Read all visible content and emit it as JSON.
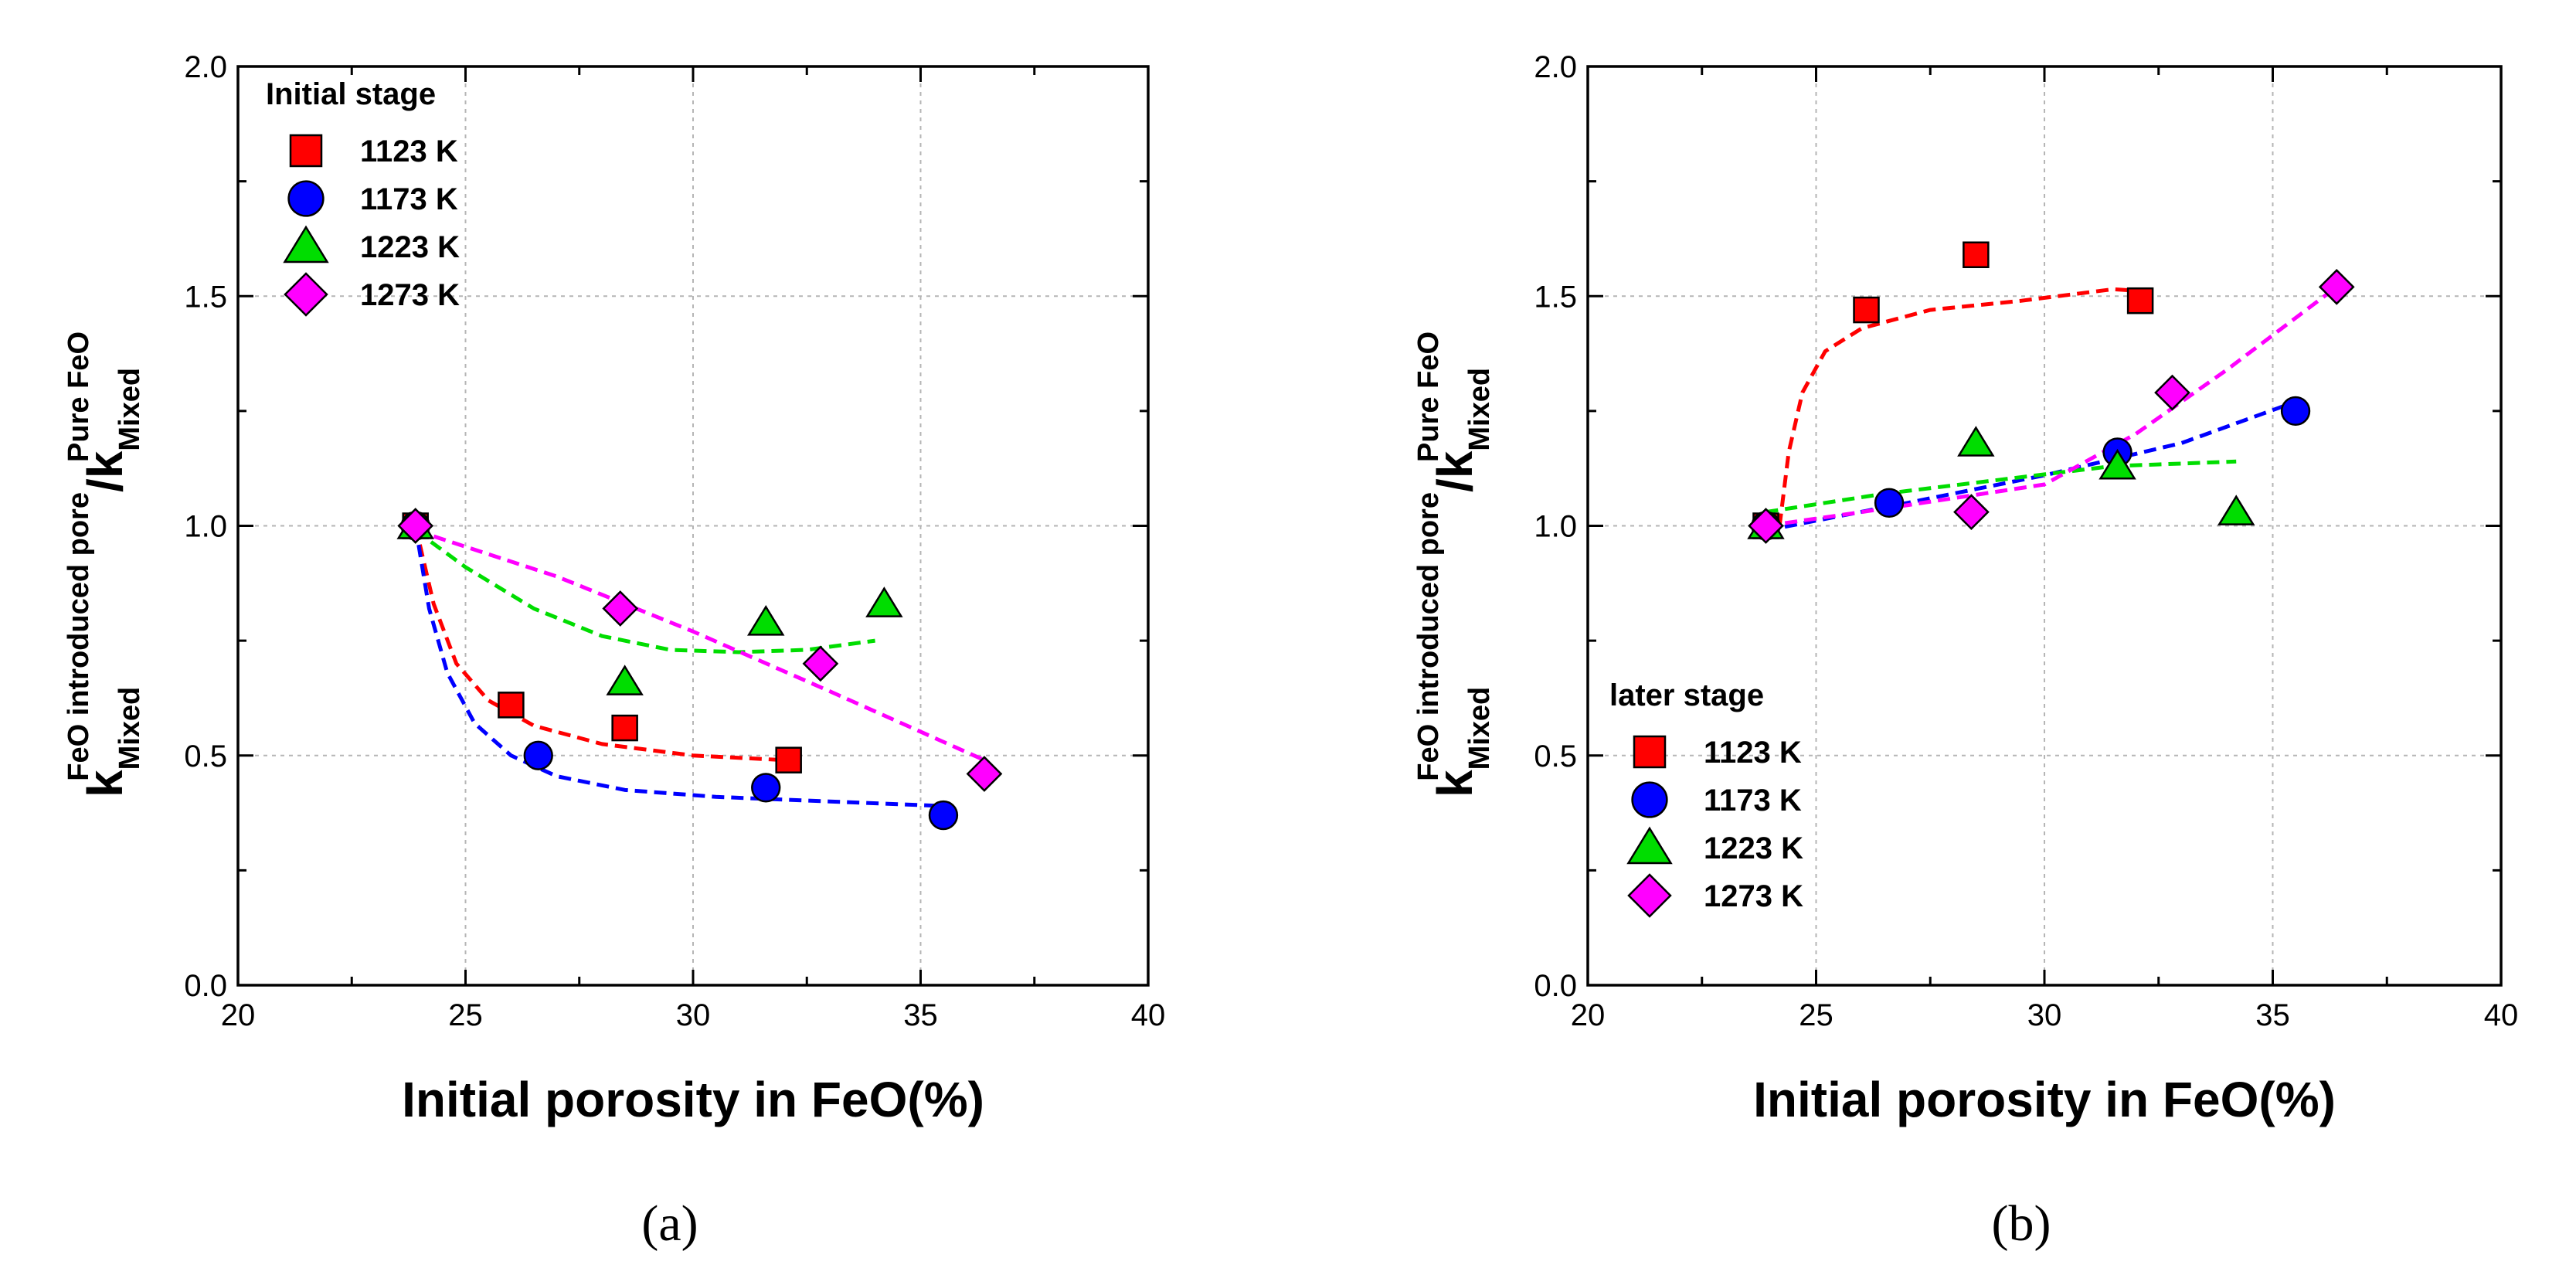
{
  "colors": {
    "1123 K": "#ff0000",
    "1173 K": "#0000ff",
    "1223 K": "#00dd00",
    "1273 K": "#ff00ff"
  },
  "chart_data": [
    {
      "type": "scatter",
      "panel_label": "(a)",
      "xlabel": "Initial porosity in FeO(%)",
      "ylabel_parts": {
        "k": "k",
        "sub1": "Mixed",
        "sup1": "FeO introduced pore",
        "slash": "/k",
        "sub2": "Mixed",
        "sup2": "Pure FeO"
      },
      "xlim": [
        20,
        40
      ],
      "ylim": [
        0.0,
        2.0
      ],
      "xticks": [
        20,
        25,
        30,
        35,
        40
      ],
      "yticks": [
        0.0,
        0.5,
        1.0,
        1.5,
        2.0
      ],
      "ytick_labels": [
        "0.0",
        "0.5",
        "1.0",
        "1.5",
        "2.0"
      ],
      "grid": true,
      "legend_title": "Initial stage",
      "legend_position": "top-left",
      "series": [
        {
          "name": "1123 K",
          "marker": "square",
          "x": [
            23.9,
            26.0,
            28.5,
            32.1
          ],
          "y": [
            1.0,
            0.61,
            0.56,
            0.49
          ],
          "fit": {
            "x": [
              23.9,
              24.3,
              24.8,
              25.5,
              26.5,
              28.0,
              30.0,
              32.0
            ],
            "y": [
              1.0,
              0.83,
              0.7,
              0.62,
              0.565,
              0.525,
              0.5,
              0.49
            ]
          }
        },
        {
          "name": "1173 K",
          "marker": "circle",
          "x": [
            23.9,
            26.6,
            31.6,
            35.5
          ],
          "y": [
            1.0,
            0.5,
            0.43,
            0.37
          ],
          "fit": {
            "x": [
              23.9,
              24.2,
              24.6,
              25.2,
              26.0,
              27.0,
              28.5,
              30.5,
              33.0,
              35.5
            ],
            "y": [
              1.0,
              0.82,
              0.68,
              0.57,
              0.5,
              0.455,
              0.425,
              0.41,
              0.4,
              0.39
            ]
          }
        },
        {
          "name": "1223 K",
          "marker": "triangle",
          "x": [
            23.9,
            28.5,
            31.6,
            34.2
          ],
          "y": [
            1.0,
            0.66,
            0.79,
            0.83
          ],
          "fit": {
            "x": [
              23.9,
              25.0,
              26.5,
              28.0,
              29.5,
              31.0,
              32.5,
              34.0
            ],
            "y": [
              0.99,
              0.91,
              0.82,
              0.76,
              0.73,
              0.725,
              0.73,
              0.75
            ]
          }
        },
        {
          "name": "1273 K",
          "marker": "diamond",
          "x": [
            23.9,
            28.4,
            32.8,
            36.4
          ],
          "y": [
            1.0,
            0.82,
            0.7,
            0.46
          ],
          "fit": {
            "x": [
              23.9,
              27.0,
              30.0,
              33.0,
              36.4
            ],
            "y": [
              0.99,
              0.89,
              0.77,
              0.64,
              0.49
            ]
          }
        }
      ]
    },
    {
      "type": "scatter",
      "panel_label": "(b)",
      "xlabel": "Initial porosity in FeO(%)",
      "ylabel_parts": {
        "k": "k",
        "sub1": "Mixed",
        "sup1": "FeO introduced pore",
        "slash": "/k",
        "sub2": "Mixed",
        "sup2": "Pure FeO"
      },
      "xlim": [
        20,
        40
      ],
      "ylim": [
        0.0,
        2.0
      ],
      "xticks": [
        20,
        25,
        30,
        35,
        40
      ],
      "yticks": [
        0.0,
        0.5,
        1.0,
        1.5,
        2.0
      ],
      "ytick_labels": [
        "0.0",
        "0.5",
        "1.0",
        "1.5",
        "2.0"
      ],
      "grid": true,
      "legend_title": "later stage",
      "legend_position": "bottom-left",
      "series": [
        {
          "name": "1123 K",
          "marker": "square",
          "x": [
            23.9,
            26.1,
            28.5,
            32.1
          ],
          "y": [
            1.0,
            1.47,
            1.59,
            1.49
          ],
          "fit": {
            "x": [
              24.2,
              24.4,
              24.7,
              25.2,
              26.0,
              27.5,
              29.5,
              31.5,
              32.3
            ],
            "y": [
              1.0,
              1.16,
              1.29,
              1.38,
              1.43,
              1.47,
              1.49,
              1.515,
              1.51
            ]
          }
        },
        {
          "name": "1173 K",
          "marker": "circle",
          "x": [
            23.9,
            26.6,
            31.6,
            35.5
          ],
          "y": [
            1.0,
            1.05,
            1.16,
            1.25
          ],
          "fit": {
            "x": [
              23.9,
              27.0,
              30.0,
              33.0,
              35.5
            ],
            "y": [
              0.99,
              1.05,
              1.11,
              1.18,
              1.27
            ]
          }
        },
        {
          "name": "1223 K",
          "marker": "triangle",
          "x": [
            23.9,
            28.5,
            31.6,
            34.2
          ],
          "y": [
            1.0,
            1.18,
            1.13,
            1.03
          ],
          "fit": {
            "x": [
              23.9,
              26.5,
              29.0,
              31.5,
              34.2
            ],
            "y": [
              1.03,
              1.07,
              1.1,
              1.13,
              1.14
            ]
          }
        },
        {
          "name": "1273 K",
          "marker": "diamond",
          "x": [
            23.9,
            28.4,
            32.8,
            36.4
          ],
          "y": [
            1.0,
            1.03,
            1.29,
            1.52
          ],
          "fit": {
            "x": [
              23.9,
              26.0,
              28.0,
              30.0,
              32.0,
              34.0,
              36.4
            ],
            "y": [
              1.0,
              1.03,
              1.06,
              1.09,
              1.2,
              1.34,
              1.52
            ]
          }
        }
      ]
    }
  ]
}
